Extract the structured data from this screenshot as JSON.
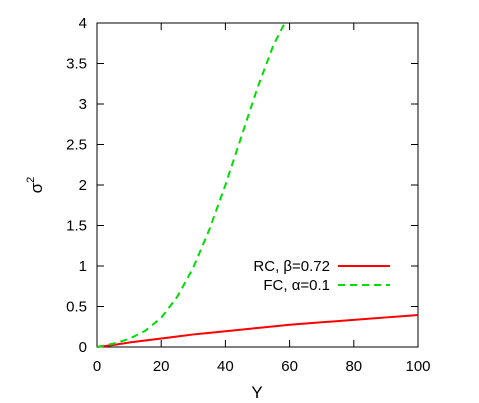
{
  "chart_data": {
    "type": "line",
    "xlabel": "Y",
    "ylabel_base": "σ",
    "ylabel_sup": "2",
    "xlim": [
      0,
      100
    ],
    "ylim": [
      0,
      4
    ],
    "x_ticks": [
      0,
      20,
      40,
      60,
      80,
      100
    ],
    "x_tick_labels": [
      "0",
      "20",
      "40",
      "60",
      "80",
      "100"
    ],
    "y_ticks": [
      0,
      0.5,
      1,
      1.5,
      2,
      2.5,
      3,
      3.5,
      4
    ],
    "y_tick_labels": [
      "0",
      "0.5",
      "1",
      "1.5",
      "2",
      "2.5",
      "3",
      "3.5",
      "4"
    ],
    "grid": false,
    "legend_position": "lower-right",
    "series": [
      {
        "name": "RC, β=0.72",
        "color": "#ff0000",
        "style": "solid",
        "x": [
          0,
          5,
          10,
          15,
          20,
          25,
          30,
          35,
          40,
          45,
          50,
          55,
          60,
          65,
          70,
          75,
          80,
          85,
          90,
          95,
          100
        ],
        "y": [
          0,
          0.025,
          0.055,
          0.08,
          0.105,
          0.13,
          0.155,
          0.175,
          0.195,
          0.215,
          0.235,
          0.255,
          0.275,
          0.29,
          0.305,
          0.32,
          0.335,
          0.35,
          0.365,
          0.38,
          0.395
        ]
      },
      {
        "name": "FC, α=0.1",
        "color": "#00dd00",
        "style": "dashed",
        "x": [
          0,
          5,
          10,
          15,
          20,
          25,
          30,
          35,
          40,
          45,
          50,
          55,
          58.5
        ],
        "y": [
          0,
          0.04,
          0.1,
          0.2,
          0.36,
          0.62,
          0.98,
          1.45,
          2.0,
          2.6,
          3.2,
          3.73,
          4.0
        ]
      }
    ]
  }
}
